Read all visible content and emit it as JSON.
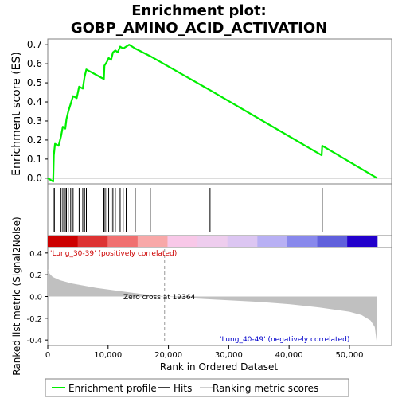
{
  "chart_data": {
    "type": "line",
    "title": "Enrichment plot:",
    "subtitle": "GOBP_AMINO_ACID_ACTIVATION",
    "colors": {
      "es_line": "#00ee00",
      "hits": "#000000",
      "metric_fill": "#c0c0c0",
      "zero_line": "#999999",
      "frame": "#808080",
      "pos_label": "#cc0000",
      "neg_label": "#0000cc"
    },
    "es_panel": {
      "ylabel": "Enrichment score (ES)",
      "ylim": [
        -0.03,
        0.73
      ],
      "yticks": [
        0.0,
        0.1,
        0.2,
        0.3,
        0.4,
        0.5,
        0.6,
        0.7
      ],
      "ytick_labels": [
        "0.0",
        "0.1",
        "0.2",
        "0.3",
        "0.4",
        "0.5",
        "0.6",
        "0.7"
      ],
      "points": [
        [
          0,
          0.0
        ],
        [
          900,
          -0.018
        ],
        [
          1000,
          0.12
        ],
        [
          1200,
          0.18
        ],
        [
          1800,
          0.17
        ],
        [
          2200,
          0.22
        ],
        [
          2500,
          0.27
        ],
        [
          2900,
          0.26
        ],
        [
          3100,
          0.31
        ],
        [
          3400,
          0.35
        ],
        [
          3800,
          0.39
        ],
        [
          4200,
          0.43
        ],
        [
          4800,
          0.42
        ],
        [
          5200,
          0.48
        ],
        [
          5800,
          0.47
        ],
        [
          6100,
          0.53
        ],
        [
          6400,
          0.57
        ],
        [
          9300,
          0.52
        ],
        [
          9400,
          0.59
        ],
        [
          9800,
          0.61
        ],
        [
          10100,
          0.63
        ],
        [
          10500,
          0.62
        ],
        [
          10800,
          0.66
        ],
        [
          11200,
          0.67
        ],
        [
          11600,
          0.66
        ],
        [
          12000,
          0.69
        ],
        [
          12500,
          0.68
        ],
        [
          13000,
          0.69
        ],
        [
          13500,
          0.7
        ],
        [
          14500,
          0.68
        ],
        [
          17000,
          0.64
        ],
        [
          27000,
          0.46
        ],
        [
          45400,
          0.12
        ],
        [
          45500,
          0.17
        ],
        [
          54600,
          0.0
        ]
      ]
    },
    "hits": [
      900,
      1100,
      2200,
      2500,
      2900,
      3100,
      3400,
      3800,
      4200,
      5200,
      5800,
      6100,
      6400,
      9300,
      9500,
      9800,
      10100,
      10500,
      10800,
      11200,
      12000,
      12500,
      13000,
      14500,
      17000,
      26900,
      45500
    ],
    "heat_colors": [
      "#cc0000",
      "#dd3333",
      "#f07070",
      "#f8a8a8",
      "#f8c8e8",
      "#eecdee",
      "#dcc6f2",
      "#b8b0f4",
      "#8888ec",
      "#6060dc",
      "#2200cc"
    ],
    "metric_panel": {
      "ylabel": "Ranked list metric (Signal2Noise)",
      "ylim": [
        -0.45,
        0.45
      ],
      "yticks": [
        -0.4,
        -0.2,
        0.0,
        0.2,
        0.4
      ],
      "ytick_labels": [
        "-0.4",
        "-0.2",
        "0.0",
        "0.2",
        "0.4"
      ],
      "curve": [
        [
          0,
          0.25
        ],
        [
          300,
          0.21
        ],
        [
          800,
          0.18
        ],
        [
          2000,
          0.15
        ],
        [
          4000,
          0.12
        ],
        [
          8000,
          0.08
        ],
        [
          12000,
          0.05
        ],
        [
          16000,
          0.02
        ],
        [
          19364,
          0.0
        ],
        [
          25000,
          -0.02
        ],
        [
          30000,
          -0.035
        ],
        [
          35000,
          -0.05
        ],
        [
          40000,
          -0.07
        ],
        [
          45000,
          -0.1
        ],
        [
          50000,
          -0.14
        ],
        [
          52000,
          -0.17
        ],
        [
          53500,
          -0.22
        ],
        [
          54200,
          -0.28
        ],
        [
          54600,
          -0.45
        ]
      ],
      "zero_cross_label": "Zero cross at 19364",
      "zero_cross_x": 19364,
      "pos_label": "'Lung_30-39' (positively correlated)",
      "neg_label": "'Lung_40-49' (negatively correlated)"
    },
    "xlabel": "Rank in Ordered Dataset",
    "xlim": [
      0,
      57000
    ],
    "n_genes": 54600,
    "xticks": [
      0,
      10000,
      20000,
      30000,
      40000,
      50000
    ],
    "xtick_labels": [
      "0",
      "10,000",
      "20,000",
      "30,000",
      "40,000",
      "50,000"
    ],
    "legend": {
      "placement": "bottom",
      "items": [
        "Enrichment profile",
        "Hits",
        "Ranking metric scores"
      ]
    }
  }
}
